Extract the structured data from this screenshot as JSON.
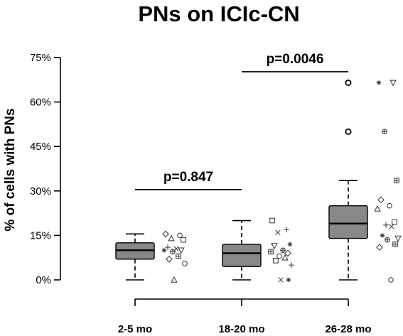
{
  "chart_data": {
    "type": "box",
    "title": "PNs on ICIc-CN",
    "xlabel": "",
    "ylabel": "% of cells with PNs",
    "ylim": [
      0,
      75
    ],
    "yticks": [
      0,
      15,
      30,
      45,
      60,
      75
    ],
    "ytick_labels": [
      "0%",
      "15%",
      "30%",
      "45%",
      "60%",
      "75%"
    ],
    "categories": [
      "2-5 mo",
      "18-20 mo",
      "26-28 mo"
    ],
    "boxes": [
      {
        "min": 0,
        "q1": 7,
        "median": 10,
        "q3": 12.5,
        "max": 15.5,
        "outliers": []
      },
      {
        "min": 0,
        "q1": 4.5,
        "median": 9,
        "q3": 12,
        "max": 20,
        "outliers": []
      },
      {
        "min": 0,
        "q1": 14,
        "median": 19,
        "q3": 25,
        "max": 33.5,
        "outliers": [
          50,
          66.5
        ]
      }
    ],
    "points": [
      [
        15.5,
        15,
        14,
        13.5,
        11,
        10.5,
        10,
        10,
        9.5,
        8,
        7,
        5.5,
        0
      ],
      [
        20,
        17,
        16,
        12,
        11.5,
        10,
        9.5,
        9,
        8,
        7.5,
        6.5,
        5,
        0,
        0
      ],
      [
        66.5,
        66.5,
        50,
        33.5,
        27,
        25,
        24,
        19.5,
        18.5,
        18,
        15,
        14,
        13.5,
        12,
        11,
        0
      ]
    ],
    "comparisons": [
      {
        "groups": [
          "2-5 mo",
          "18-20 mo"
        ],
        "label": "p=0.847",
        "y": 38
      },
      {
        "groups": [
          "18-20 mo",
          "26-28 mo"
        ],
        "label": "p=0.0046",
        "y": 88
      }
    ],
    "colors": {
      "box_fill": "#888888",
      "line": "#000000"
    }
  }
}
